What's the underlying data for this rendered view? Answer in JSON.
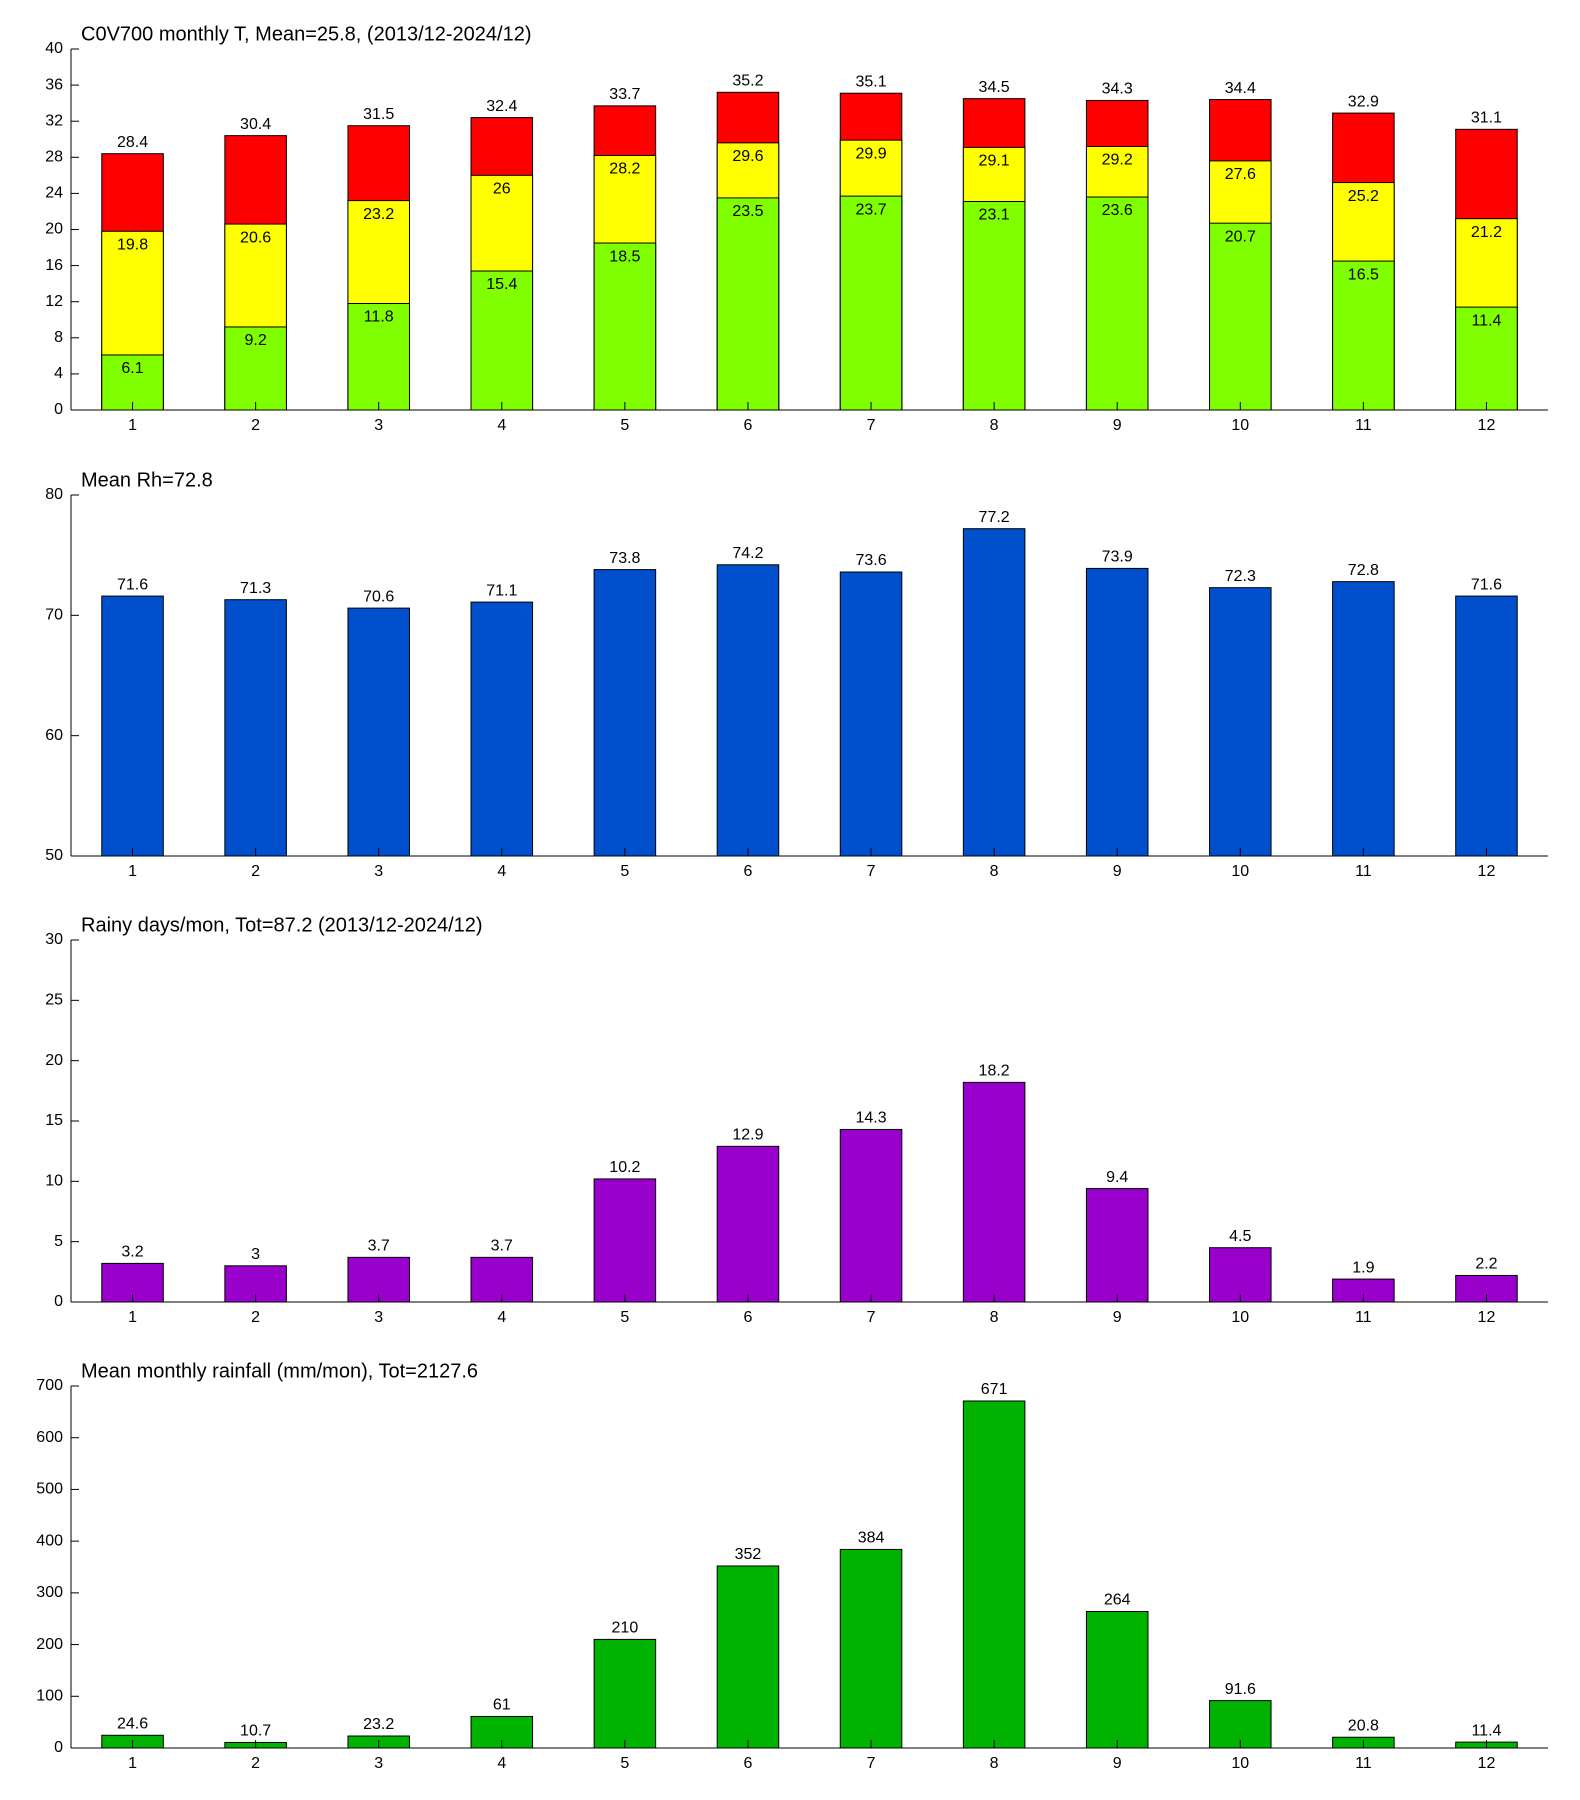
{
  "chart_data": [
    {
      "type": "bar",
      "title": "C0V700 monthly T, Mean=25.8, (2013/12-2024/12)",
      "categories": [
        1,
        2,
        3,
        4,
        5,
        6,
        7,
        8,
        9,
        10,
        11,
        12
      ],
      "series": [
        {
          "color": "#ff0000",
          "values": [
            28.4,
            30.4,
            31.5,
            32.4,
            33.7,
            35.2,
            35.1,
            34.5,
            34.3,
            34.4,
            32.9,
            31.1
          ]
        },
        {
          "color": "#ffff00",
          "values": [
            19.8,
            20.6,
            23.2,
            26,
            28.2,
            29.6,
            29.9,
            29.1,
            29.2,
            27.6,
            25.2,
            21.2
          ]
        },
        {
          "color": "#80ff00",
          "values": [
            6.1,
            9.2,
            11.8,
            15.4,
            18.5,
            23.5,
            23.7,
            23.1,
            23.6,
            20.7,
            16.5,
            11.4
          ]
        }
      ],
      "ylim": [
        0,
        40
      ],
      "yticks": [
        0,
        4,
        8,
        12,
        16,
        20,
        24,
        28,
        32,
        36,
        40
      ]
    },
    {
      "type": "bar",
      "title": "Mean Rh=72.8",
      "categories": [
        1,
        2,
        3,
        4,
        5,
        6,
        7,
        8,
        9,
        10,
        11,
        12
      ],
      "values": [
        71.6,
        71.3,
        70.6,
        71.1,
        73.8,
        74.2,
        73.6,
        77.2,
        73.9,
        72.3,
        72.8,
        71.6
      ],
      "color": "#004fcc",
      "ylim": [
        50,
        80
      ],
      "yticks": [
        50,
        60,
        70,
        80
      ]
    },
    {
      "type": "bar",
      "title": "Rainy days/mon, Tot=87.2 (2013/12-2024/12)",
      "categories": [
        1,
        2,
        3,
        4,
        5,
        6,
        7,
        8,
        9,
        10,
        11,
        12
      ],
      "values": [
        3.2,
        3,
        3.7,
        3.7,
        10.2,
        12.9,
        14.3,
        18.2,
        9.4,
        4.5,
        1.9,
        2.2
      ],
      "color": "#9900cc",
      "ylim": [
        0,
        30
      ],
      "yticks": [
        0,
        5,
        10,
        15,
        20,
        25,
        30
      ]
    },
    {
      "type": "bar",
      "title": "Mean monthly rainfall (mm/mon), Tot=2127.6",
      "categories": [
        1,
        2,
        3,
        4,
        5,
        6,
        7,
        8,
        9,
        10,
        11,
        12
      ],
      "values": [
        24.6,
        10.7,
        23.2,
        61,
        210,
        352,
        384,
        671,
        264,
        91.6,
        20.8,
        11.4
      ],
      "color": "#00b300",
      "ylim": [
        0,
        700
      ],
      "yticks": [
        0,
        100,
        200,
        300,
        400,
        500,
        600,
        700
      ]
    }
  ]
}
